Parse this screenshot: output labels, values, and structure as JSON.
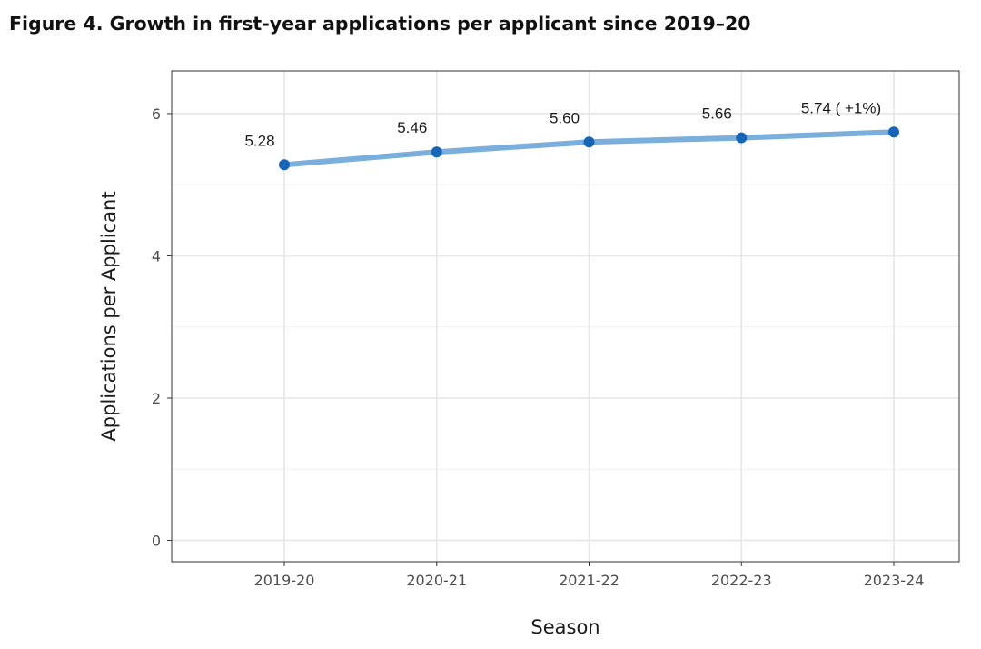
{
  "figure": {
    "title": "Figure 4. Growth in first-year applications per applicant since 2019–20"
  },
  "colors": {
    "line": "#7aaedc",
    "point": "#1565b8",
    "grid_major": "#e6e6e6",
    "grid_minor": "#f0f0f0",
    "panel_border": "#333333",
    "tick_text": "#4d4d4d",
    "text": "#1a1a1a"
  },
  "chart_data": {
    "type": "line",
    "title": "Figure 4. Growth in first-year applications per applicant since 2019–20",
    "xlabel": "Season",
    "ylabel": "Applications per Applicant",
    "categories": [
      "2019-20",
      "2020-21",
      "2021-22",
      "2022-23",
      "2023-24"
    ],
    "series": [
      {
        "values": [
          5.28,
          5.46,
          5.6,
          5.66,
          5.74
        ]
      }
    ],
    "data_labels": [
      "5.28",
      "5.46",
      "5.60",
      "5.66",
      "5.74 ( +1%)"
    ],
    "ylim": [
      -0.3,
      6.6
    ],
    "y_ticks": [
      0,
      2,
      4,
      6
    ],
    "y_tick_labels": [
      "0",
      "2",
      "4",
      "6"
    ],
    "grid": true,
    "legend": "none"
  }
}
